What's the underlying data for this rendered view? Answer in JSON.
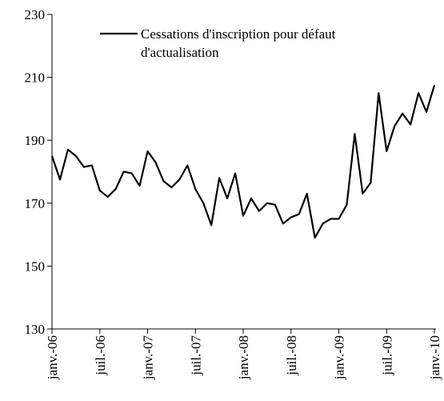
{
  "chart_data": {
    "type": "line",
    "categories": [
      "janv.-06",
      null,
      null,
      null,
      null,
      null,
      "juil.-06",
      null,
      null,
      null,
      null,
      null,
      "janv.-07",
      null,
      null,
      null,
      null,
      null,
      "juil.-07",
      null,
      null,
      null,
      null,
      null,
      "janv.-08",
      null,
      null,
      null,
      null,
      null,
      "juil.-08",
      null,
      null,
      null,
      null,
      null,
      "janv.-09",
      null,
      null,
      null,
      null,
      null,
      "juil.-09",
      null,
      null,
      null,
      null,
      null,
      "janv.-10"
    ],
    "series": [
      {
        "name": "Cessations d'inscription pour défaut d'actualisation",
        "color": "#000000",
        "values": [
          185,
          177.5,
          187,
          185,
          181.5,
          182,
          174,
          172,
          174.5,
          180,
          179.5,
          175.5,
          186.5,
          183,
          177,
          175,
          177.5,
          182,
          174.5,
          170,
          163,
          178,
          171.5,
          179.5,
          166,
          171.5,
          167.5,
          170,
          169.5,
          163.5,
          165.5,
          166.5,
          173,
          159,
          163.5,
          165,
          165,
          169.5,
          192,
          173,
          176.5,
          205,
          186.5,
          194.5,
          198.5,
          195,
          205,
          199,
          207.5
        ]
      }
    ],
    "ylim": [
      130,
      230
    ],
    "yticks": [
      130,
      150,
      170,
      190,
      210,
      230
    ],
    "grid": false,
    "legend": "top"
  }
}
